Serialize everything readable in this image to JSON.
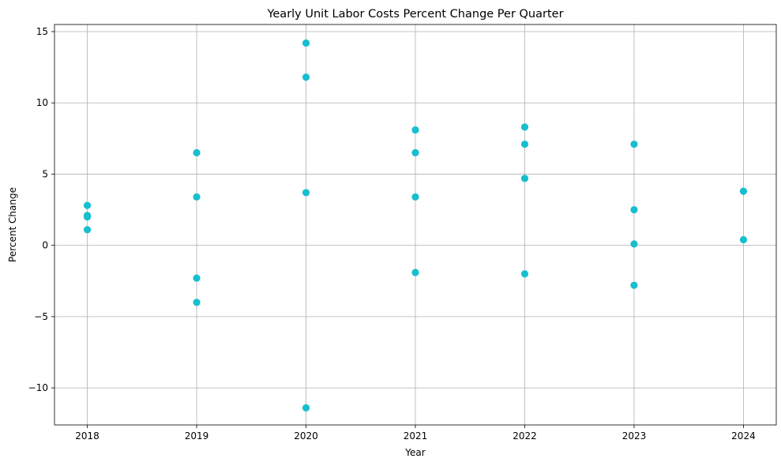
{
  "chart_data": {
    "type": "scatter",
    "title": "Yearly Unit Labor Costs Percent Change Per Quarter",
    "xlabel": "Year",
    "ylabel": "Percent Change",
    "xlim": [
      2017.7,
      2024.3
    ],
    "ylim": [
      -12.6,
      15.5
    ],
    "xticks": [
      2018,
      2019,
      2020,
      2021,
      2022,
      2023,
      2024
    ],
    "xtick_labels": [
      "2018",
      "2019",
      "2020",
      "2021",
      "2022",
      "2023",
      "2024"
    ],
    "yticks": [
      -10,
      -5,
      0,
      5,
      10,
      15
    ],
    "ytick_labels": [
      "−10",
      "−5",
      "0",
      "5",
      "10",
      "15"
    ],
    "grid": true,
    "legend": "none",
    "marker_color": "#17becf",
    "series": [
      {
        "points": [
          {
            "x": 2018,
            "y": 2.8
          },
          {
            "x": 2018,
            "y": 2.1
          },
          {
            "x": 2018,
            "y": 2.0
          },
          {
            "x": 2018,
            "y": 1.1
          },
          {
            "x": 2019,
            "y": 6.5
          },
          {
            "x": 2019,
            "y": 3.4
          },
          {
            "x": 2019,
            "y": -2.3
          },
          {
            "x": 2019,
            "y": -4.0
          },
          {
            "x": 2020,
            "y": 14.2
          },
          {
            "x": 2020,
            "y": 11.8
          },
          {
            "x": 2020,
            "y": 3.7
          },
          {
            "x": 2020,
            "y": -11.4
          },
          {
            "x": 2021,
            "y": 8.1
          },
          {
            "x": 2021,
            "y": 6.5
          },
          {
            "x": 2021,
            "y": 3.4
          },
          {
            "x": 2021,
            "y": -1.9
          },
          {
            "x": 2022,
            "y": 8.3
          },
          {
            "x": 2022,
            "y": 7.1
          },
          {
            "x": 2022,
            "y": 4.7
          },
          {
            "x": 2022,
            "y": -2.0
          },
          {
            "x": 2023,
            "y": 7.1
          },
          {
            "x": 2023,
            "y": 2.5
          },
          {
            "x": 2023,
            "y": 0.1
          },
          {
            "x": 2023,
            "y": -2.8
          },
          {
            "x": 2024,
            "y": 3.8
          },
          {
            "x": 2024,
            "y": 0.4
          }
        ]
      }
    ]
  }
}
